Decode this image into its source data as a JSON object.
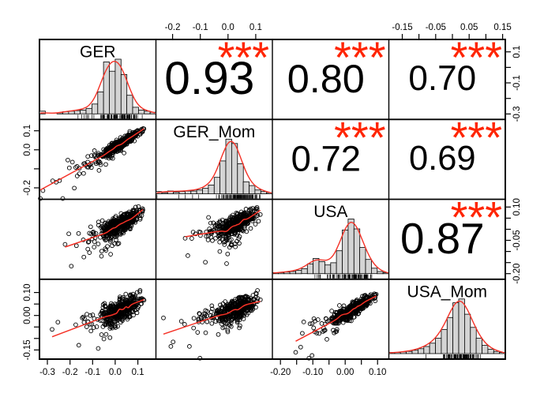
{
  "chart_data": {
    "type": "scatter",
    "variant": "pairs-correlation-matrix",
    "title": "",
    "grid": "panel-borders-only",
    "variables": [
      "GER",
      "GER_Mom",
      "USA",
      "USA_Mom"
    ],
    "ranges": {
      "GER": [
        -0.335,
        0.18
      ],
      "GER_Mom": [
        -0.26,
        0.16
      ],
      "USA": [
        -0.225,
        0.135
      ],
      "USA_Mom": [
        -0.19,
        0.158
      ]
    },
    "n_points": 460,
    "correlations": [
      {
        "x_var": "GER_Mom",
        "y_var": "GER",
        "row": 0,
        "col": 1,
        "r": 0.93,
        "r_label": "0.93",
        "sig": "***"
      },
      {
        "x_var": "USA",
        "y_var": "GER",
        "row": 0,
        "col": 2,
        "r": 0.8,
        "r_label": "0.80",
        "sig": "***"
      },
      {
        "x_var": "USA_Mom",
        "y_var": "GER",
        "row": 0,
        "col": 3,
        "r": 0.7,
        "r_label": "0.70",
        "sig": "***"
      },
      {
        "x_var": "USA",
        "y_var": "GER_Mom",
        "row": 1,
        "col": 2,
        "r": 0.72,
        "r_label": "0.72",
        "sig": "***"
      },
      {
        "x_var": "USA_Mom",
        "y_var": "GER_Mom",
        "row": 1,
        "col": 3,
        "r": 0.69,
        "r_label": "0.69",
        "sig": "***"
      },
      {
        "x_var": "USA_Mom",
        "y_var": "USA",
        "row": 2,
        "col": 3,
        "r": 0.87,
        "r_label": "0.87",
        "sig": "***"
      }
    ],
    "histograms": {
      "GER": [
        0.05,
        0,
        0,
        0.02,
        0.04,
        0.05,
        0.06,
        0.07,
        0.1,
        0.18,
        0.4,
        0.95,
        0.78,
        1.0,
        0.72,
        0.34,
        0.12,
        0.07,
        0.05,
        0.03
      ],
      "GER_Mom": [
        0.04,
        0.02,
        0.05,
        0.03,
        0.04,
        0.05,
        0.05,
        0.07,
        0.1,
        0.16,
        0.3,
        0.6,
        1.0,
        0.92,
        0.55,
        0.22,
        0.15,
        0.07,
        0.04,
        0.02
      ],
      "USA": [
        0.02,
        0.02,
        0.03,
        0.04,
        0.06,
        0.09,
        0.18,
        0.28,
        0.22,
        0.16,
        0.2,
        0.42,
        0.8,
        1.0,
        0.82,
        0.48,
        0.26,
        0.1,
        0.04,
        0.02
      ],
      "USA_Mom": [
        0.02,
        0.02,
        0.03,
        0.04,
        0.06,
        0.09,
        0.13,
        0.19,
        0.28,
        0.44,
        0.66,
        0.93,
        1.0,
        0.72,
        0.48,
        0.28,
        0.15,
        0.08,
        0.04,
        0.02
      ]
    },
    "axes": {
      "top": [
        {
          "col": 1,
          "ticks": [
            -0.2,
            -0.1,
            0.0,
            0.1
          ],
          "labels": [
            "-0.2",
            "-0.1",
            "0.0",
            "0.1"
          ],
          "minor_ticks": []
        },
        {
          "col": 3,
          "ticks": [
            -0.15,
            -0.05,
            0.05,
            0.15
          ],
          "labels": [
            "-0.15",
            "-0.05",
            "0.05",
            "0.15"
          ],
          "minor_ticks": [
            -0.1,
            0.0,
            0.1
          ]
        }
      ],
      "bottom": [
        {
          "col": 0,
          "ticks": [
            -0.3,
            -0.2,
            -0.1,
            0.0,
            0.1
          ],
          "labels": [
            "-0.3",
            "-0.2",
            "-0.1",
            "0.0",
            "0.1"
          ],
          "minor_ticks": []
        },
        {
          "col": 2,
          "ticks": [
            -0.2,
            -0.1,
            0.0,
            0.1
          ],
          "labels": [
            "-0.20",
            "-0.10",
            "0.00",
            "0.10"
          ],
          "minor_ticks": [
            -0.15,
            -0.05,
            0.05
          ]
        }
      ],
      "left": [
        {
          "row": 1,
          "ticks": [
            0.1,
            0.0,
            -0.2
          ],
          "labels": [
            "0.1",
            "0.0",
            "-0.2"
          ],
          "minor_ticks": [
            -0.1
          ]
        },
        {
          "row": 3,
          "ticks": [
            0.1,
            0.0,
            -0.15
          ],
          "labels": [
            "0.10",
            "0.00",
            "-0.15"
          ],
          "minor_ticks": [
            0.05,
            -0.05,
            -0.1
          ]
        }
      ],
      "right": [
        {
          "row": 0,
          "ticks": [
            0.1,
            -0.1,
            -0.3
          ],
          "labels": [
            "0.1",
            "-0.1",
            "-0.3"
          ],
          "minor_ticks": [
            0.0,
            -0.2
          ]
        },
        {
          "row": 2,
          "ticks": [
            0.1,
            -0.05,
            -0.2
          ],
          "labels": [
            "0.10",
            "-0.05",
            "-0.20"
          ],
          "minor_ticks": [
            0.05,
            0.0,
            -0.1,
            -0.15
          ]
        }
      ]
    },
    "colors": {
      "background": "#ffffff",
      "frame": "#000000",
      "histogram_fill": "#d4d4d4",
      "histogram_stroke": "#000000",
      "density_line": "#f53126",
      "lowess_line": "#f53126",
      "scatter_point": "#000000",
      "significance_stars": "#ff2400",
      "text": "#000000"
    }
  }
}
